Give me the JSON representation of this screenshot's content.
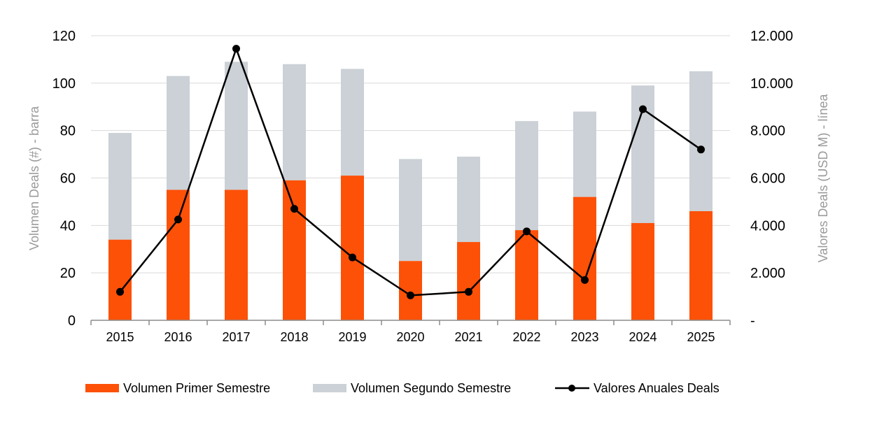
{
  "chart_data": {
    "type": "bar",
    "stacked": true,
    "categories": [
      "2015",
      "2016",
      "2017",
      "2018",
      "2019",
      "2020",
      "2021",
      "2022",
      "2023",
      "2024",
      "2025"
    ],
    "series": [
      {
        "name": "Volumen Primer Semestre",
        "kind": "bar",
        "axis": "left",
        "color": "#fd5108",
        "values": [
          34,
          55,
          55,
          59,
          61,
          25,
          33,
          38,
          52,
          41,
          46
        ]
      },
      {
        "name": "Volumen Segundo Semestre",
        "kind": "bar",
        "axis": "left",
        "color": "#cbd1d6",
        "values": [
          45,
          48,
          54,
          49,
          45,
          43,
          36,
          46,
          36,
          58,
          59
        ]
      },
      {
        "name": "Valores Anuales Deals",
        "kind": "line",
        "axis": "right",
        "color": "#000000",
        "values": [
          1200,
          4250,
          11450,
          4700,
          2650,
          1050,
          1200,
          3750,
          1700,
          8900,
          7200
        ]
      }
    ],
    "ylabel": "Volumen Deals (#) - barra",
    "y2label": "Valores Deals (USD M) - línea",
    "ylim": [
      0,
      120
    ],
    "y2lim": [
      0,
      12000
    ],
    "yticks": [
      "0",
      "20",
      "40",
      "60",
      "80",
      "100",
      "120"
    ],
    "y2ticks": [
      "-",
      "2.000",
      "4.000",
      "6.000",
      "8.000",
      "10.000",
      "12.000"
    ],
    "grid": true,
    "legend_position": "bottom"
  }
}
